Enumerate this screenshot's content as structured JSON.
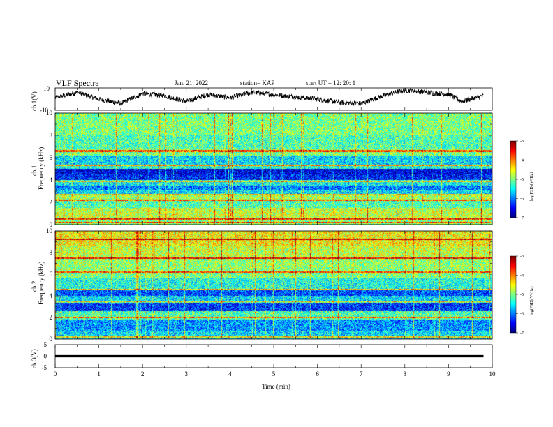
{
  "header": {
    "title": "VLF Spectra",
    "date": "Jan. 21, 2022",
    "station": "station= KAP",
    "start": "start  UT =   12: 20: 1"
  },
  "chart_data": [
    {
      "type": "line",
      "name": "ch1-waveform",
      "ylabel": "ch.1(V)",
      "ylim": [
        -10,
        10
      ],
      "yticks": [
        "10",
        "-10"
      ],
      "xlim": [
        0,
        10
      ],
      "line_color": "#000000",
      "y_envelope": [
        [
          0.0,
          1.0
        ],
        [
          0.5,
          6.0
        ],
        [
          1.0,
          0.0
        ],
        [
          1.5,
          -4.0
        ],
        [
          2.0,
          5.0
        ],
        [
          2.5,
          3.0
        ],
        [
          3.0,
          -2.0
        ],
        [
          3.5,
          4.0
        ],
        [
          4.0,
          1.0
        ],
        [
          4.5,
          6.0
        ],
        [
          5.0,
          4.0
        ],
        [
          5.5,
          2.0
        ],
        [
          6.0,
          0.0
        ],
        [
          6.5,
          -3.0
        ],
        [
          7.0,
          -4.0
        ],
        [
          7.5,
          3.0
        ],
        [
          8.0,
          8.0
        ],
        [
          8.5,
          6.0
        ],
        [
          9.0,
          4.0
        ],
        [
          9.3,
          -2.0
        ],
        [
          9.8,
          3.0
        ]
      ]
    },
    {
      "type": "heatmap",
      "name": "ch1-spectrogram",
      "ylabel": "ch.1",
      "ylabel2": "Frequency (kHz)",
      "xlim": [
        0,
        10
      ],
      "ylim": [
        0,
        10
      ],
      "yticks": [
        "0",
        "2",
        "4",
        "6",
        "8",
        "10"
      ],
      "colorbar": {
        "min": -7,
        "max": -3,
        "ticks": [
          "-3",
          "-4",
          "-5",
          "-6",
          "-7"
        ],
        "label": "log(PSD)(V²/Hz)"
      },
      "bands": [
        {
          "from": 0.0,
          "to": 0.5,
          "level": -5.0
        },
        {
          "from": 0.5,
          "to": 1.5,
          "level": -4.7
        },
        {
          "from": 1.5,
          "to": 2.2,
          "level": -5.2
        },
        {
          "from": 2.2,
          "to": 2.6,
          "level": -4.8
        },
        {
          "from": 2.6,
          "to": 3.1,
          "level": -5.6
        },
        {
          "from": 3.1,
          "to": 3.5,
          "level": -6.0
        },
        {
          "from": 3.5,
          "to": 3.9,
          "level": -5.5
        },
        {
          "from": 3.9,
          "to": 4.5,
          "level": -6.4
        },
        {
          "from": 4.5,
          "to": 5.0,
          "level": -6.6
        },
        {
          "from": 5.0,
          "to": 5.4,
          "level": -5.4
        },
        {
          "from": 5.4,
          "to": 6.2,
          "level": -5.6
        },
        {
          "from": 6.2,
          "to": 6.8,
          "level": -5.0
        },
        {
          "from": 6.8,
          "to": 8.0,
          "level": -5.2
        },
        {
          "from": 8.0,
          "to": 10.0,
          "level": -5.0
        }
      ],
      "lines_khz": [
        0.2,
        0.5,
        2.2,
        2.7,
        3.9,
        5.3,
        6.6
      ]
    },
    {
      "type": "heatmap",
      "name": "ch2-spectrogram",
      "ylabel": "ch.2",
      "ylabel2": "Frequency (kHz)",
      "xlim": [
        0,
        10
      ],
      "ylim": [
        0,
        10
      ],
      "yticks": [
        "0",
        "2",
        "4",
        "6",
        "8",
        "10"
      ],
      "colorbar": {
        "min": -7,
        "max": -3,
        "ticks": [
          "-3",
          "-4",
          "-5",
          "-6",
          "-7"
        ],
        "label": "log(PSD)(V²/Hz)"
      },
      "bands": [
        {
          "from": 0.0,
          "to": 0.8,
          "level": -5.6
        },
        {
          "from": 0.8,
          "to": 1.8,
          "level": -5.9
        },
        {
          "from": 1.8,
          "to": 2.6,
          "level": -5.2
        },
        {
          "from": 2.6,
          "to": 3.4,
          "level": -6.3
        },
        {
          "from": 3.4,
          "to": 4.0,
          "level": -5.6
        },
        {
          "from": 4.0,
          "to": 4.6,
          "level": -6.2
        },
        {
          "from": 4.6,
          "to": 5.6,
          "level": -5.4
        },
        {
          "from": 5.6,
          "to": 6.4,
          "level": -5.0
        },
        {
          "from": 6.4,
          "to": 7.4,
          "level": -4.9
        },
        {
          "from": 7.4,
          "to": 8.6,
          "level": -4.7
        },
        {
          "from": 8.6,
          "to": 10.0,
          "level": -4.5
        }
      ],
      "lines_khz": [
        0.2,
        2.0,
        3.4,
        4.6,
        6.2,
        7.5,
        9.2
      ]
    },
    {
      "type": "line",
      "name": "ch3-waveform",
      "ylabel": "ch.3(V)",
      "ylim": [
        -5,
        5
      ],
      "yticks": [
        "5",
        "0",
        "-5"
      ],
      "xlim": [
        0,
        10
      ],
      "xlabel": "Time (min)",
      "xticks": [
        "0",
        "1",
        "2",
        "3",
        "4",
        "5",
        "6",
        "7",
        "8",
        "9",
        "10"
      ],
      "trace": {
        "center": 0.0,
        "half_width": 0.5,
        "x_end": 9.8
      },
      "line_color": "#000000"
    }
  ]
}
